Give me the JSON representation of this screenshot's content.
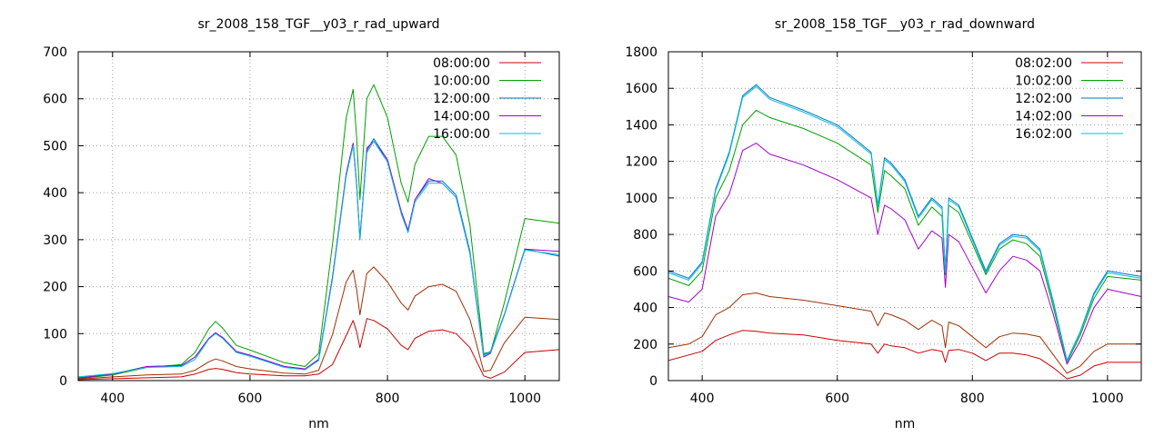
{
  "chart_data": [
    {
      "type": "line",
      "title": "sr_2008_158_TGF__y03_r_rad_upward",
      "xlabel": "nm",
      "ylabel": "",
      "xlim": [
        350,
        1050
      ],
      "ylim": [
        0,
        700
      ],
      "xticks": [
        400,
        600,
        800,
        1000
      ],
      "yticks": [
        0,
        100,
        200,
        300,
        400,
        500,
        600,
        700
      ],
      "grid": true,
      "legend_position": "top-right",
      "series": [
        {
          "name": "08:00:00",
          "color": "#cc0000",
          "x": [
            350,
            400,
            450,
            500,
            520,
            540,
            550,
            560,
            580,
            600,
            650,
            680,
            700,
            720,
            740,
            750,
            755,
            760,
            770,
            780,
            800,
            820,
            830,
            840,
            860,
            880,
            900,
            920,
            940,
            950,
            970,
            1000,
            1050
          ],
          "y": [
            2,
            4,
            6,
            8,
            14,
            24,
            26,
            24,
            17,
            14,
            10,
            10,
            14,
            34,
            96,
            128,
            105,
            70,
            132,
            128,
            110,
            75,
            66,
            90,
            105,
            108,
            100,
            70,
            10,
            5,
            18,
            60,
            66
          ]
        },
        {
          "name": "10:00:00",
          "color": "#00a000",
          "x": [
            350,
            400,
            450,
            500,
            520,
            540,
            550,
            560,
            580,
            600,
            650,
            680,
            700,
            720,
            740,
            750,
            755,
            760,
            770,
            780,
            800,
            820,
            830,
            840,
            860,
            880,
            900,
            920,
            940,
            950,
            970,
            1000,
            1050
          ],
          "y": [
            4,
            12,
            28,
            34,
            60,
            110,
            126,
            112,
            75,
            65,
            38,
            30,
            58,
            290,
            560,
            620,
            520,
            385,
            600,
            630,
            560,
            420,
            380,
            460,
            520,
            520,
            480,
            330,
            58,
            60,
            165,
            345,
            335
          ]
        },
        {
          "name": "12:00:00",
          "color": "#0070c0",
          "x": [
            350,
            400,
            450,
            500,
            520,
            540,
            550,
            560,
            580,
            600,
            650,
            680,
            700,
            720,
            740,
            750,
            755,
            760,
            770,
            780,
            800,
            820,
            830,
            840,
            860,
            880,
            900,
            920,
            940,
            950,
            970,
            1000,
            1050
          ],
          "y": [
            6,
            14,
            30,
            32,
            50,
            90,
            100,
            92,
            62,
            54,
            30,
            25,
            45,
            220,
            440,
            505,
            420,
            305,
            490,
            515,
            470,
            360,
            320,
            385,
            425,
            425,
            395,
            275,
            55,
            62,
            140,
            280,
            265
          ]
        },
        {
          "name": "14:00:00",
          "color": "#a000cc",
          "x": [
            350,
            400,
            450,
            500,
            520,
            540,
            550,
            560,
            580,
            600,
            650,
            680,
            700,
            720,
            740,
            750,
            755,
            760,
            770,
            780,
            800,
            820,
            830,
            840,
            860,
            880,
            900,
            920,
            940,
            950,
            970,
            1000,
            1050
          ],
          "y": [
            5,
            14,
            30,
            32,
            50,
            90,
            102,
            92,
            62,
            54,
            30,
            25,
            45,
            220,
            440,
            505,
            420,
            300,
            495,
            510,
            470,
            360,
            320,
            385,
            430,
            420,
            390,
            270,
            50,
            58,
            140,
            280,
            275
          ]
        },
        {
          "name": "16:00:00",
          "color": "#00c0e0",
          "x": [
            350,
            400,
            450,
            500,
            520,
            540,
            550,
            560,
            580,
            600,
            650,
            680,
            700,
            720,
            740,
            750,
            755,
            760,
            770,
            780,
            800,
            820,
            830,
            840,
            860,
            880,
            900,
            920,
            940,
            950,
            970,
            1000,
            1050
          ],
          "y": [
            8,
            15,
            28,
            30,
            45,
            88,
            100,
            90,
            60,
            52,
            28,
            23,
            43,
            215,
            435,
            500,
            415,
            300,
            485,
            510,
            465,
            355,
            315,
            380,
            420,
            420,
            390,
            270,
            52,
            60,
            138,
            278,
            268
          ]
        },
        {
          "name": "",
          "color": "#a03000",
          "x": [
            350,
            400,
            450,
            500,
            520,
            540,
            550,
            560,
            580,
            600,
            650,
            680,
            700,
            720,
            740,
            750,
            755,
            760,
            770,
            780,
            800,
            820,
            830,
            840,
            860,
            880,
            900,
            920,
            940,
            950,
            970,
            1000,
            1050
          ],
          "y": [
            3,
            8,
            12,
            14,
            22,
            40,
            46,
            42,
            30,
            25,
            16,
            14,
            22,
            98,
            210,
            235,
            195,
            140,
            228,
            242,
            210,
            165,
            150,
            180,
            200,
            205,
            190,
            130,
            20,
            22,
            80,
            135,
            130
          ]
        }
      ]
    },
    {
      "type": "line",
      "title": "sr_2008_158_TGF__y03_r_rad_downward",
      "xlabel": "nm",
      "ylabel": "",
      "xlim": [
        350,
        1050
      ],
      "ylim": [
        0,
        1800
      ],
      "xticks": [
        400,
        600,
        800,
        1000
      ],
      "yticks": [
        0,
        200,
        400,
        600,
        800,
        1000,
        1200,
        1400,
        1600,
        1800
      ],
      "grid": true,
      "legend_position": "top-right",
      "series": [
        {
          "name": "08:02:00",
          "color": "#cc0000",
          "x": [
            350,
            380,
            400,
            420,
            440,
            460,
            480,
            500,
            550,
            600,
            650,
            660,
            670,
            680,
            700,
            720,
            740,
            755,
            760,
            765,
            780,
            800,
            820,
            840,
            860,
            880,
            900,
            920,
            940,
            960,
            980,
            1000,
            1050
          ],
          "y": [
            110,
            140,
            160,
            220,
            250,
            275,
            270,
            260,
            250,
            220,
            200,
            150,
            200,
            190,
            180,
            150,
            170,
            160,
            100,
            165,
            170,
            150,
            110,
            150,
            150,
            140,
            120,
            70,
            10,
            30,
            80,
            100,
            100
          ]
        },
        {
          "name": "10:02:00",
          "color": "#00a000",
          "x": [
            350,
            380,
            400,
            420,
            440,
            460,
            480,
            500,
            550,
            600,
            650,
            660,
            670,
            680,
            700,
            720,
            740,
            755,
            760,
            765,
            780,
            800,
            820,
            840,
            860,
            880,
            900,
            920,
            940,
            960,
            980,
            1000,
            1050
          ],
          "y": [
            560,
            520,
            600,
            1000,
            1150,
            1400,
            1480,
            1440,
            1380,
            1300,
            1180,
            920,
            1150,
            1120,
            1050,
            850,
            950,
            900,
            580,
            960,
            920,
            750,
            580,
            720,
            770,
            750,
            680,
            400,
            100,
            250,
            450,
            570,
            550
          ]
        },
        {
          "name": "12:02:00",
          "color": "#0070c0",
          "x": [
            350,
            380,
            400,
            420,
            440,
            460,
            480,
            500,
            550,
            600,
            650,
            660,
            670,
            680,
            700,
            720,
            740,
            755,
            760,
            765,
            780,
            800,
            820,
            840,
            860,
            880,
            900,
            920,
            940,
            960,
            980,
            1000,
            1050
          ],
          "y": [
            600,
            560,
            650,
            1050,
            1250,
            1560,
            1620,
            1550,
            1480,
            1400,
            1250,
            960,
            1220,
            1190,
            1100,
            900,
            1000,
            950,
            600,
            1000,
            960,
            780,
            600,
            750,
            800,
            790,
            720,
            430,
            110,
            270,
            480,
            600,
            570
          ]
        },
        {
          "name": "14:02:00",
          "color": "#a000cc",
          "x": [
            350,
            380,
            400,
            420,
            440,
            460,
            480,
            500,
            550,
            600,
            650,
            660,
            670,
            680,
            700,
            720,
            740,
            755,
            760,
            765,
            780,
            800,
            820,
            840,
            860,
            880,
            900,
            920,
            940,
            960,
            980,
            1000,
            1050
          ],
          "y": [
            460,
            430,
            500,
            900,
            1020,
            1260,
            1300,
            1240,
            1180,
            1100,
            1000,
            800,
            960,
            940,
            880,
            720,
            820,
            780,
            510,
            800,
            760,
            620,
            480,
            600,
            680,
            660,
            600,
            360,
            90,
            220,
            400,
            500,
            460
          ]
        },
        {
          "name": "16:02:00",
          "color": "#00c0e0",
          "x": [
            350,
            380,
            400,
            420,
            440,
            460,
            480,
            500,
            550,
            600,
            650,
            660,
            670,
            680,
            700,
            720,
            740,
            755,
            760,
            765,
            780,
            800,
            820,
            840,
            860,
            880,
            900,
            920,
            940,
            960,
            980,
            1000,
            1050
          ],
          "y": [
            590,
            550,
            640,
            1040,
            1240,
            1550,
            1610,
            1540,
            1470,
            1390,
            1240,
            950,
            1210,
            1180,
            1090,
            890,
            990,
            940,
            590,
            990,
            950,
            770,
            590,
            740,
            790,
            780,
            710,
            420,
            105,
            265,
            470,
            590,
            560
          ]
        },
        {
          "name": "",
          "color": "#a03000",
          "x": [
            350,
            380,
            400,
            420,
            440,
            460,
            480,
            500,
            550,
            600,
            650,
            660,
            670,
            680,
            700,
            720,
            740,
            755,
            760,
            765,
            780,
            800,
            820,
            840,
            860,
            880,
            900,
            920,
            940,
            960,
            980,
            1000,
            1050
          ],
          "y": [
            180,
            200,
            240,
            360,
            400,
            470,
            480,
            460,
            440,
            410,
            380,
            300,
            370,
            360,
            330,
            280,
            330,
            300,
            180,
            320,
            300,
            240,
            180,
            240,
            260,
            255,
            240,
            140,
            40,
            80,
            160,
            200,
            200
          ]
        }
      ]
    }
  ]
}
